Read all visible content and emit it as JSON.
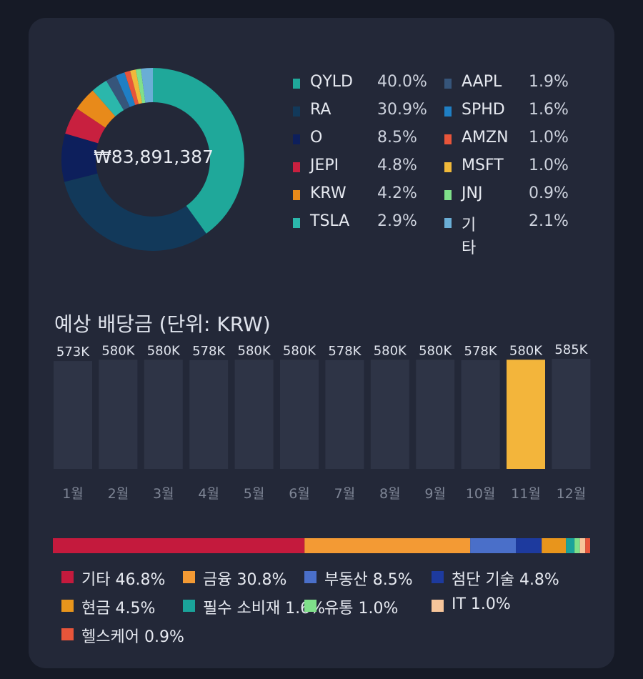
{
  "chart_data": [
    {
      "type": "pie",
      "center_label": "₩83,891,387",
      "slices": [
        {
          "name": "QYLD",
          "pct_label": "40.0%",
          "value": 40.0,
          "color": "#1fa89a"
        },
        {
          "name": "RA",
          "pct_label": "30.9%",
          "value": 30.9,
          "color": "#12395a"
        },
        {
          "name": "O",
          "pct_label": "8.5%",
          "value": 8.5,
          "color": "#0d1f5c"
        },
        {
          "name": "JEPI",
          "pct_label": "4.8%",
          "value": 4.8,
          "color": "#c8203f"
        },
        {
          "name": "KRW",
          "pct_label": "4.2%",
          "value": 4.2,
          "color": "#e88a1a"
        },
        {
          "name": "TSLA",
          "pct_label": "2.9%",
          "value": 2.9,
          "color": "#2bb7ab"
        },
        {
          "name": "AAPL",
          "pct_label": "1.9%",
          "value": 1.9,
          "color": "#36557a"
        },
        {
          "name": "SPHD",
          "pct_label": "1.6%",
          "value": 1.6,
          "color": "#1f7fc4"
        },
        {
          "name": "AMZN",
          "pct_label": "1.0%",
          "value": 1.0,
          "color": "#e8553a"
        },
        {
          "name": "MSFT",
          "pct_label": "1.0%",
          "value": 1.0,
          "color": "#f0b93a"
        },
        {
          "name": "JNJ",
          "pct_label": "0.9%",
          "value": 0.9,
          "color": "#7fe08a"
        },
        {
          "name": "기타",
          "pct_label": "2.1%",
          "value": 2.1,
          "color": "#6aaed6"
        }
      ]
    },
    {
      "type": "bar",
      "title": "예상 배당금 (단위: KRW)",
      "categories": [
        "1월",
        "2월",
        "3월",
        "4월",
        "5월",
        "6월",
        "7월",
        "8월",
        "9월",
        "10월",
        "11월",
        "12월"
      ],
      "values": [
        573,
        580,
        580,
        578,
        580,
        580,
        578,
        580,
        580,
        578,
        580,
        585
      ],
      "value_labels": [
        "573K",
        "580K",
        "580K",
        "578K",
        "580K",
        "580K",
        "578K",
        "580K",
        "580K",
        "578K",
        "580K",
        "585K"
      ],
      "highlighted_category": "11월",
      "bar_color": "#2e3446",
      "highlight_color": "#f3b53b"
    },
    {
      "type": "bar",
      "orientation": "horizontal-stacked",
      "segments": [
        {
          "name": "기타",
          "pct_label": "46.8%",
          "value": 46.8,
          "color": "#c41a3d"
        },
        {
          "name": "금융",
          "pct_label": "30.8%",
          "value": 30.8,
          "color": "#f39a34"
        },
        {
          "name": "부동산",
          "pct_label": "8.5%",
          "value": 8.5,
          "color": "#4a6fc9"
        },
        {
          "name": "첨단 기술",
          "pct_label": "4.8%",
          "value": 4.8,
          "color": "#1d3a9e"
        },
        {
          "name": "현금",
          "pct_label": "4.5%",
          "value": 4.5,
          "color": "#e8951c"
        },
        {
          "name": "필수 소비재",
          "pct_label": "1.6%",
          "value": 1.6,
          "color": "#1aa39a"
        },
        {
          "name": "유통",
          "pct_label": "1.0%",
          "value": 1.0,
          "color": "#7fe08a"
        },
        {
          "name": "IT",
          "pct_label": "1.0%",
          "value": 1.0,
          "color": "#f7c59a"
        },
        {
          "name": "헬스케어",
          "pct_label": "0.9%",
          "value": 0.9,
          "color": "#e8553a"
        }
      ]
    }
  ]
}
